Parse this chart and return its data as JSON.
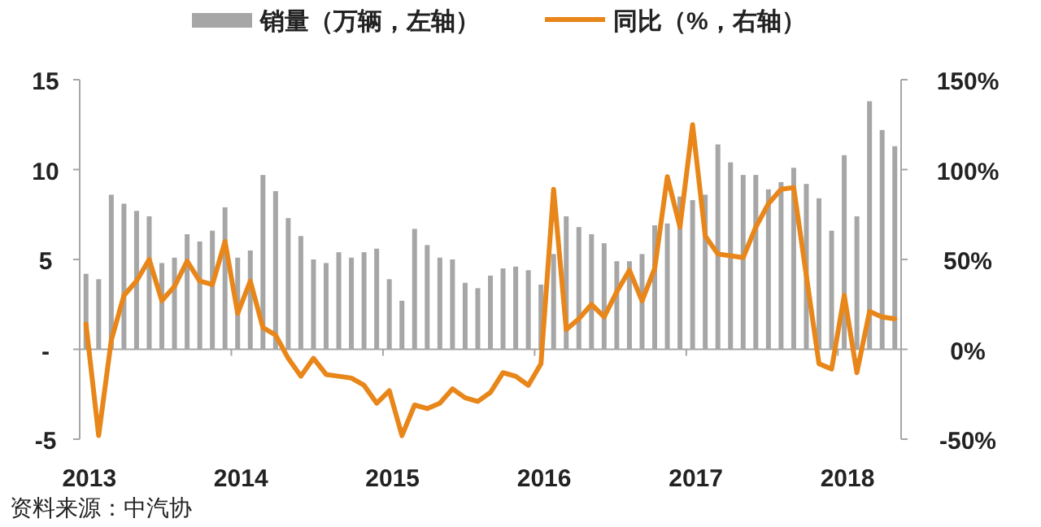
{
  "chart_data": {
    "type": "bar",
    "categories": [
      "2013",
      null,
      null,
      null,
      null,
      null,
      null,
      null,
      null,
      null,
      null,
      null,
      "2014",
      null,
      null,
      null,
      null,
      null,
      null,
      null,
      null,
      null,
      null,
      null,
      "2015",
      null,
      null,
      null,
      null,
      null,
      null,
      null,
      null,
      null,
      null,
      null,
      "2016",
      null,
      null,
      null,
      null,
      null,
      null,
      null,
      null,
      null,
      null,
      null,
      "2017",
      null,
      null,
      null,
      null,
      null,
      null,
      null,
      null,
      null,
      null,
      null,
      "2018",
      null,
      null,
      null,
      null
    ],
    "series": [
      {
        "name": "销量（万辆，左轴）",
        "color": "#a6a6a6",
        "values": [
          4.2,
          3.9,
          8.6,
          8.1,
          7.7,
          7.4,
          4.8,
          5.1,
          6.4,
          6.0,
          6.6,
          7.9,
          5.1,
          5.5,
          9.7,
          8.8,
          7.3,
          6.3,
          5.0,
          4.8,
          5.4,
          5.1,
          5.4,
          5.6,
          3.9,
          2.7,
          6.7,
          5.8,
          5.1,
          5.0,
          3.7,
          3.4,
          4.1,
          4.5,
          4.6,
          4.4,
          3.6,
          5.3,
          7.4,
          6.8,
          6.4,
          5.9,
          4.9,
          4.9,
          5.3,
          6.9,
          7.0,
          8.5,
          8.3,
          8.6,
          11.4,
          10.4,
          9.7,
          9.7,
          8.9,
          9.3,
          10.1,
          9.2,
          8.4,
          6.6,
          10.8,
          7.4,
          13.8,
          12.2,
          11.3
        ]
      },
      {
        "name": "同比（%，右轴）",
        "type": "line",
        "axis": "y2",
        "color": "#e8861a",
        "values": [
          14,
          -48,
          5,
          30,
          38,
          50,
          27,
          35,
          49,
          38,
          36,
          60,
          20,
          38,
          12,
          8,
          -5,
          -15,
          -5,
          -14,
          -15,
          -16,
          -20,
          -30,
          -23,
          -48,
          -31,
          -33,
          -30,
          -22,
          -27,
          -29,
          -24,
          -13,
          -15,
          -20,
          -8,
          89,
          11,
          17,
          25,
          18,
          32,
          44,
          27,
          45,
          96,
          68,
          125,
          63,
          53,
          52,
          51,
          68,
          81,
          89,
          90,
          41,
          -8,
          -11,
          30,
          -13,
          21,
          18,
          17
        ]
      }
    ],
    "ylim": [
      -5,
      15
    ],
    "yticks": [
      -5,
      {
        "value": 0,
        "label": "-"
      },
      5,
      10,
      15
    ],
    "y2lim": [
      -50,
      150
    ],
    "y2ticks": [
      {
        "value": -50,
        "label": "-50%"
      },
      {
        "value": 0,
        "label": "0%"
      },
      {
        "value": 50,
        "label": "50%"
      },
      {
        "value": 100,
        "label": "100%"
      },
      {
        "value": 150,
        "label": "150%"
      }
    ],
    "legend": "top",
    "annotations": [
      "资料来源：中汽协"
    ]
  }
}
